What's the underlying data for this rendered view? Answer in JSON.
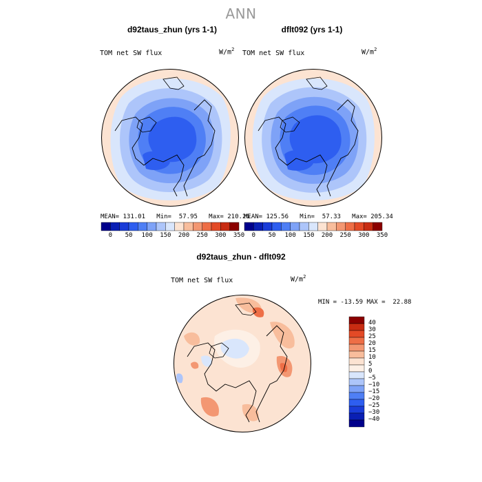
{
  "figure": {
    "title": "ANN"
  },
  "panels": [
    {
      "title": "d92taus_zhun (yrs 1-1)",
      "variable": "TOM net SW flux",
      "units": "W/m",
      "units_exp": "2",
      "mean_label": "MEAN= 131.01",
      "min_label": "Min=  57.95",
      "max_label": "Max= 210.26"
    },
    {
      "title": "dflt092 (yrs 1-1)",
      "variable": "TOM net SW flux",
      "units": "W/m",
      "units_exp": "2",
      "mean_label": "MEAN= 125.56",
      "min_label": "Min=  57.33",
      "max_label": "Max= 205.34"
    }
  ],
  "difference": {
    "title": "d92taus_zhun - dflt092",
    "variable": "TOM net SW flux",
    "units": "W/m",
    "units_exp": "2",
    "stats_label": "MIN = -13.59 MAX =  22.88"
  },
  "colorbar_abs": {
    "tick_labels": [
      "0",
      "50",
      "100",
      "150",
      "200",
      "250",
      "300",
      "350"
    ],
    "colors": [
      "#00008b",
      "#0a1fb4",
      "#1a3cd8",
      "#2e5ef0",
      "#4f7ff5",
      "#7ea2f7",
      "#adc5fa",
      "#d9e6fc",
      "#fce3d2",
      "#f8bd9c",
      "#f39772",
      "#ee6e46",
      "#e34a26",
      "#c82c12",
      "#8b0000"
    ]
  },
  "colorbar_diff": {
    "tick_labels": [
      "40",
      "30",
      "25",
      "20",
      "15",
      "10",
      "5",
      "0",
      "−5",
      "−10",
      "−15",
      "−20",
      "−25",
      "−30",
      "−40"
    ],
    "colors": [
      "#8b0000",
      "#c82c12",
      "#e34a26",
      "#ee6e46",
      "#f39772",
      "#f8bd9c",
      "#fce3d2",
      "#fdf0e6",
      "#d9e6fc",
      "#adc5fa",
      "#7ea2f7",
      "#4f7ff5",
      "#2e5ef0",
      "#1a3cd8",
      "#0a1fb4",
      "#00008b"
    ]
  }
}
